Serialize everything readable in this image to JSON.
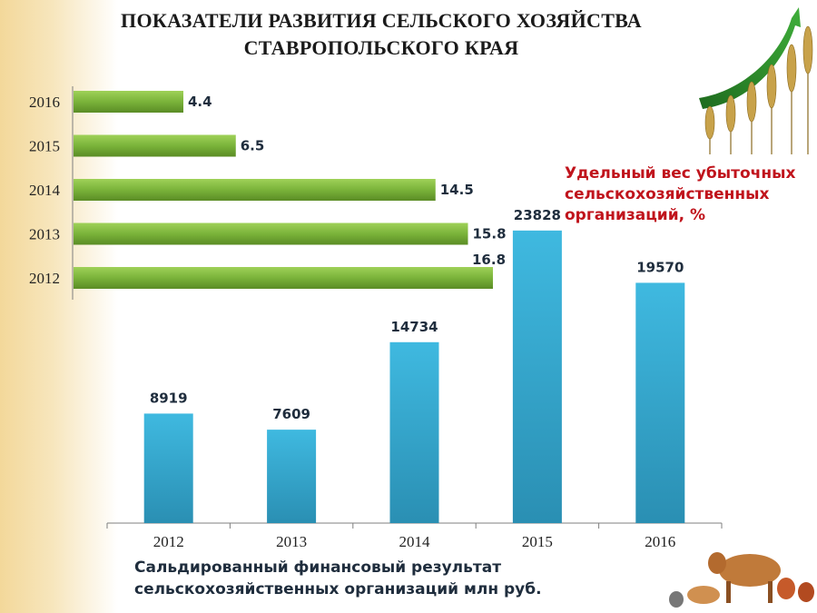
{
  "title_line1": "ПОКАЗАТЕЛИ РАЗВИТИЯ СЕЛЬСКОГО ХОЗЯЙСТВА",
  "title_line2": "СТАВРОПОЛЬСКОГО КРАЯ",
  "chart_data": [
    {
      "type": "bar",
      "orientation": "horizontal",
      "title": "Удельный вес убыточных\nсельскохозяйственных\nорганизаций, %",
      "categories": [
        "2016",
        "2015",
        "2014",
        "2013",
        "2012"
      ],
      "values": [
        4.4,
        6.5,
        14.5,
        15.8,
        16.8
      ],
      "value_labels": [
        "4.4",
        "6.5",
        "14.5",
        "15.8",
        "16.8"
      ],
      "xlim": [
        0,
        20
      ],
      "color": "#7ab33a",
      "grid": false
    },
    {
      "type": "bar",
      "orientation": "vertical",
      "title": "Сальдированный финансовый результат\nсельскохозяйственных организаций млн руб.",
      "categories": [
        "2012",
        "2013",
        "2014",
        "2015",
        "2016"
      ],
      "values": [
        8919,
        7609,
        14734,
        23828,
        19570
      ],
      "value_labels": [
        "8919",
        "7609",
        "14734",
        "23828",
        "19570"
      ],
      "ylim": [
        0,
        25000
      ],
      "color": "#35b0d8",
      "grid": false
    }
  ]
}
